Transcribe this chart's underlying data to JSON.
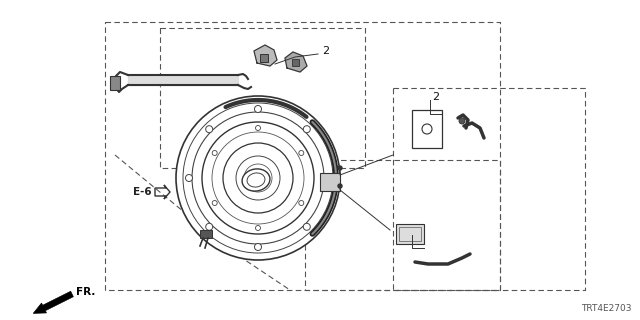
{
  "bg_color": "#ffffff",
  "diagram_code": "TRT4E2703",
  "label_e6": "E-6",
  "label_fr": "FR.",
  "fig_width": 6.4,
  "fig_height": 3.2,
  "dpi": 100,
  "line_color": "#333333",
  "dash_color": "#555555"
}
